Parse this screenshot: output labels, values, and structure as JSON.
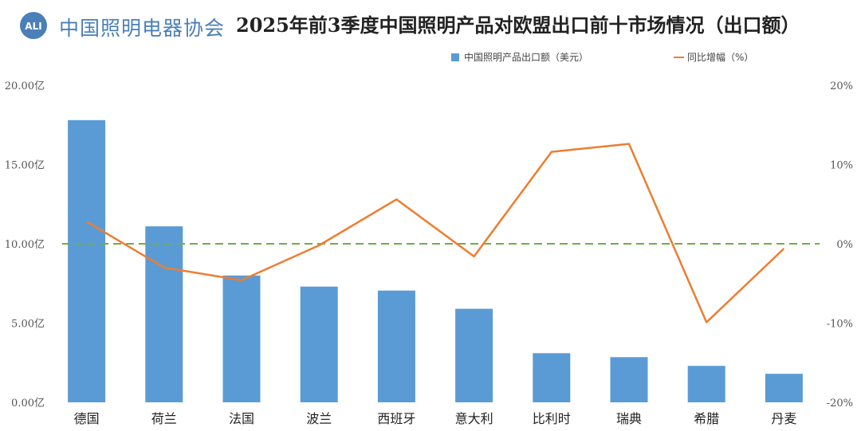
{
  "header": {
    "logo_text": "中国照明电器协会",
    "logo_mark": "ALI",
    "title": "2025年前3季度中国照明产品对欧盟出口前十市场情况（出口额）"
  },
  "colors": {
    "bar": "#5b9bd5",
    "line": "#ed7d31",
    "zero_line": "#70ad47",
    "logo": "#4a7fb8"
  },
  "chart_data": {
    "type": "bar",
    "categories": [
      "德国",
      "荷兰",
      "法国",
      "波兰",
      "西班牙",
      "意大利",
      "比利时",
      "瑞典",
      "希腊",
      "丹麦"
    ],
    "series": [
      {
        "name": "中国照明产品出口额（美元）",
        "type": "bar",
        "axis": "left",
        "values": [
          17.8,
          11.1,
          8.0,
          7.3,
          7.05,
          5.9,
          3.1,
          2.85,
          2.3,
          1.8
        ]
      },
      {
        "name": "同比增幅（%）",
        "type": "line",
        "axis": "right",
        "values": [
          2.8,
          -3.0,
          -4.6,
          -0.2,
          5.6,
          -1.6,
          11.6,
          12.6,
          -9.9,
          -0.6
        ]
      }
    ],
    "y_left": {
      "min": 0,
      "max": 20,
      "ticks": [
        "0.00亿",
        "5.00亿",
        "10.00亿",
        "15.00亿",
        "20.00亿"
      ]
    },
    "y_right": {
      "min": -20,
      "max": 20,
      "ticks": [
        "-20%",
        "-10%",
        "0%",
        "10%",
        "20%"
      ]
    },
    "reference_line": {
      "axis": "right",
      "value": 0,
      "style": "dashed"
    },
    "legend": {
      "placement": "top"
    },
    "grid": false
  }
}
